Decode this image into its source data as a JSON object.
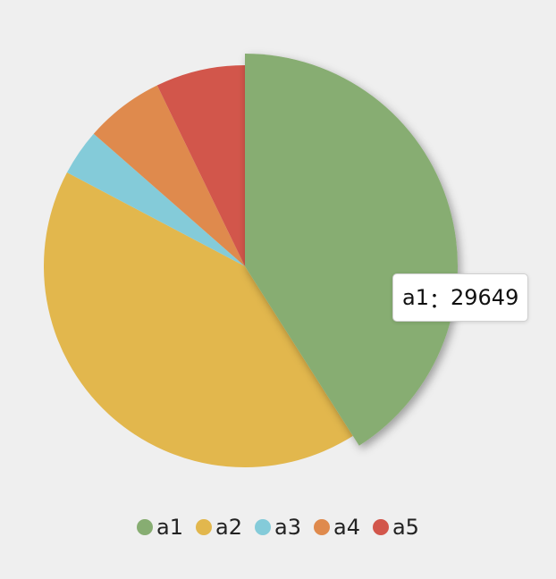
{
  "chart_data": {
    "type": "pie",
    "categories": [
      "a1",
      "a2",
      "a3",
      "a4",
      "a5"
    ],
    "values": [
      29649,
      30200,
      2700,
      4600,
      5200
    ],
    "colors": [
      "#87ad72",
      "#e2b74d",
      "#84cbd9",
      "#df8a4d",
      "#d2564b"
    ],
    "emphasized": "a1",
    "legend_position": "bottom"
  },
  "tooltip": {
    "label": "a1",
    "separator": "：",
    "value": "29649"
  }
}
